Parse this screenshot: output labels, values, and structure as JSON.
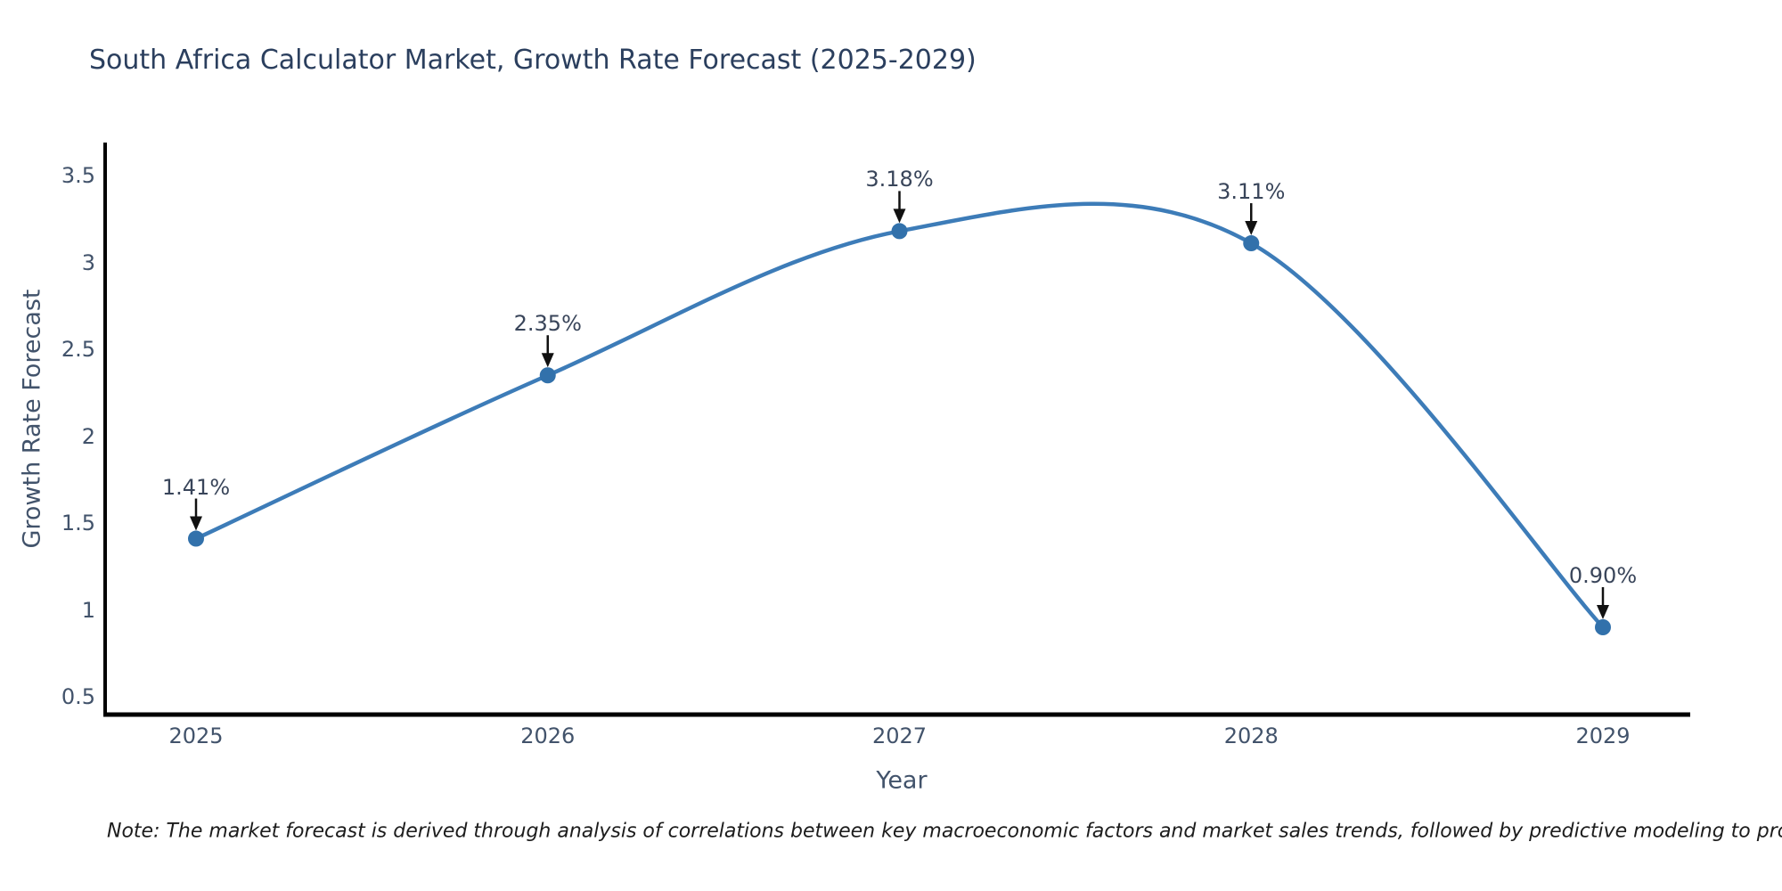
{
  "chart_data": {
    "type": "line",
    "line_shape": "spline",
    "title": "South Africa Calculator Market, Growth Rate Forecast (2025-2029)",
    "xlabel": "Year",
    "ylabel": "Growth Rate Forecast",
    "categories": [
      "2025",
      "2026",
      "2027",
      "2028",
      "2029"
    ],
    "series": [
      {
        "name": "Growth Rate Forecast",
        "values": [
          1.41,
          2.35,
          3.18,
          3.11,
          0.9
        ]
      }
    ],
    "point_labels": [
      "1.41%",
      "2.35%",
      "3.18%",
      "3.11%",
      "0.90%"
    ],
    "yticks": [
      "3.5",
      "3",
      "2.5",
      "2",
      "1.5",
      "1",
      "0.5"
    ],
    "ylim": [
      0.4,
      3.7
    ],
    "grid": false,
    "legend_position": "none",
    "annotations_style": "value label with downward black arrow to each marker",
    "note": "Note: The market forecast is derived through analysis of correlations between key macroeconomic factors and market sales trends, followed by predictive modeling to project future sales",
    "colors": {
      "line": "#3d7cb8",
      "marker": "#3271ab",
      "arrow": "#111111",
      "axis": "#000000",
      "title": "#2b3f5e",
      "tick": "#42536b",
      "annotation": "#39455a",
      "note": "#1c1c1c",
      "background": "#ffffff"
    }
  }
}
